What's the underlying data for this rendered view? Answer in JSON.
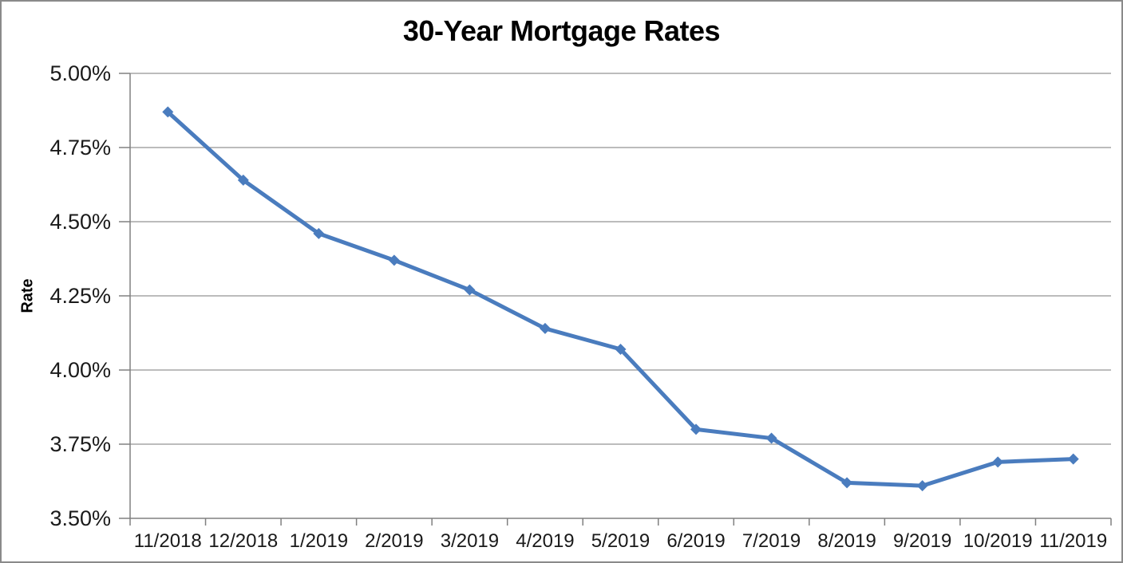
{
  "window": {
    "background": "#FFFFFF",
    "border_color": "#8A8A8A"
  },
  "chart_data": {
    "type": "line",
    "title": "30-Year Mortgage Rates",
    "xlabel": "",
    "ylabel": "Rate",
    "categories": [
      "11/2018",
      "12/2018",
      "1/2019",
      "2/2019",
      "3/2019",
      "4/2019",
      "5/2019",
      "6/2019",
      "7/2019",
      "8/2019",
      "9/2019",
      "10/2019",
      "11/2019"
    ],
    "values": [
      4.87,
      4.64,
      4.46,
      4.37,
      4.27,
      4.14,
      4.07,
      3.8,
      3.77,
      3.62,
      3.61,
      3.69,
      3.7
    ],
    "unit": "%",
    "ylim": [
      3.5,
      5.0
    ],
    "ytick_step": 0.25,
    "ytick_labels": [
      "5.00%",
      "4.75%",
      "4.50%",
      "4.25%",
      "4.00%",
      "3.75%",
      "3.50%"
    ],
    "grid": true,
    "legend": false,
    "marker": "diamond",
    "colors": {
      "line": "#4A7CBE",
      "gridline": "#A6A6A6",
      "axis": "#808080",
      "title_text": "#000000",
      "tick_text": "#1A1A1A"
    }
  }
}
